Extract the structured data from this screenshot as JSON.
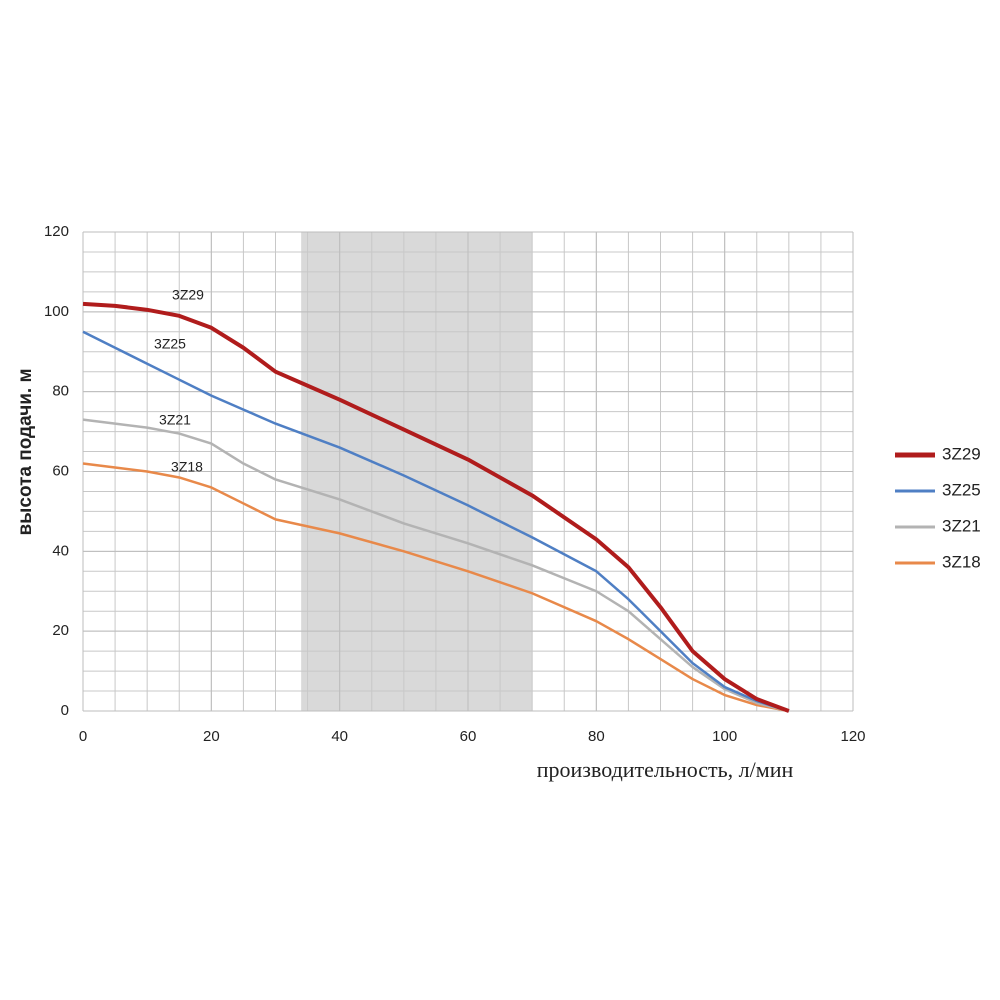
{
  "chart_data": {
    "type": "line",
    "x_label": "производительность, л/мин",
    "y_label": "высота подачи. м",
    "x": [
      0,
      5,
      10,
      15,
      20,
      25,
      30,
      40,
      50,
      60,
      70,
      80,
      85,
      90,
      95,
      100,
      105,
      110
    ],
    "series": [
      {
        "name": "3Z29",
        "color": "#b01c1c",
        "values": [
          102,
          101.5,
          100.5,
          99,
          96,
          91,
          85,
          78,
          70.5,
          63,
          54,
          43,
          36,
          26,
          15,
          8,
          3,
          0
        ]
      },
      {
        "name": "3Z25",
        "color": "#4f7fc4",
        "values": [
          95,
          91,
          87,
          83,
          79,
          75.5,
          72,
          66,
          59,
          51.5,
          43.5,
          35,
          28,
          20,
          12,
          6,
          2.5,
          0
        ]
      },
      {
        "name": "3Z21",
        "color": "#b3b3b3",
        "values": [
          73,
          72,
          71,
          69.5,
          67,
          62,
          58,
          53,
          47,
          42,
          36.5,
          30,
          25,
          18,
          11,
          5.5,
          2,
          0
        ]
      },
      {
        "name": "3Z18",
        "color": "#e8894a",
        "values": [
          62,
          61,
          60,
          58.5,
          56,
          52,
          48,
          44.5,
          40,
          35,
          29.5,
          22.5,
          18,
          13,
          8,
          4,
          1.5,
          0
        ]
      }
    ],
    "highlight_x": [
      34,
      70
    ],
    "xlim": [
      0,
      120
    ],
    "ylim": [
      0,
      120
    ],
    "xticks": [
      0,
      20,
      40,
      60,
      80,
      100,
      120
    ],
    "yticks": [
      0,
      20,
      40,
      60,
      80,
      100,
      120
    ],
    "minor_grid_step": 5,
    "grid": true,
    "legend": "right"
  }
}
